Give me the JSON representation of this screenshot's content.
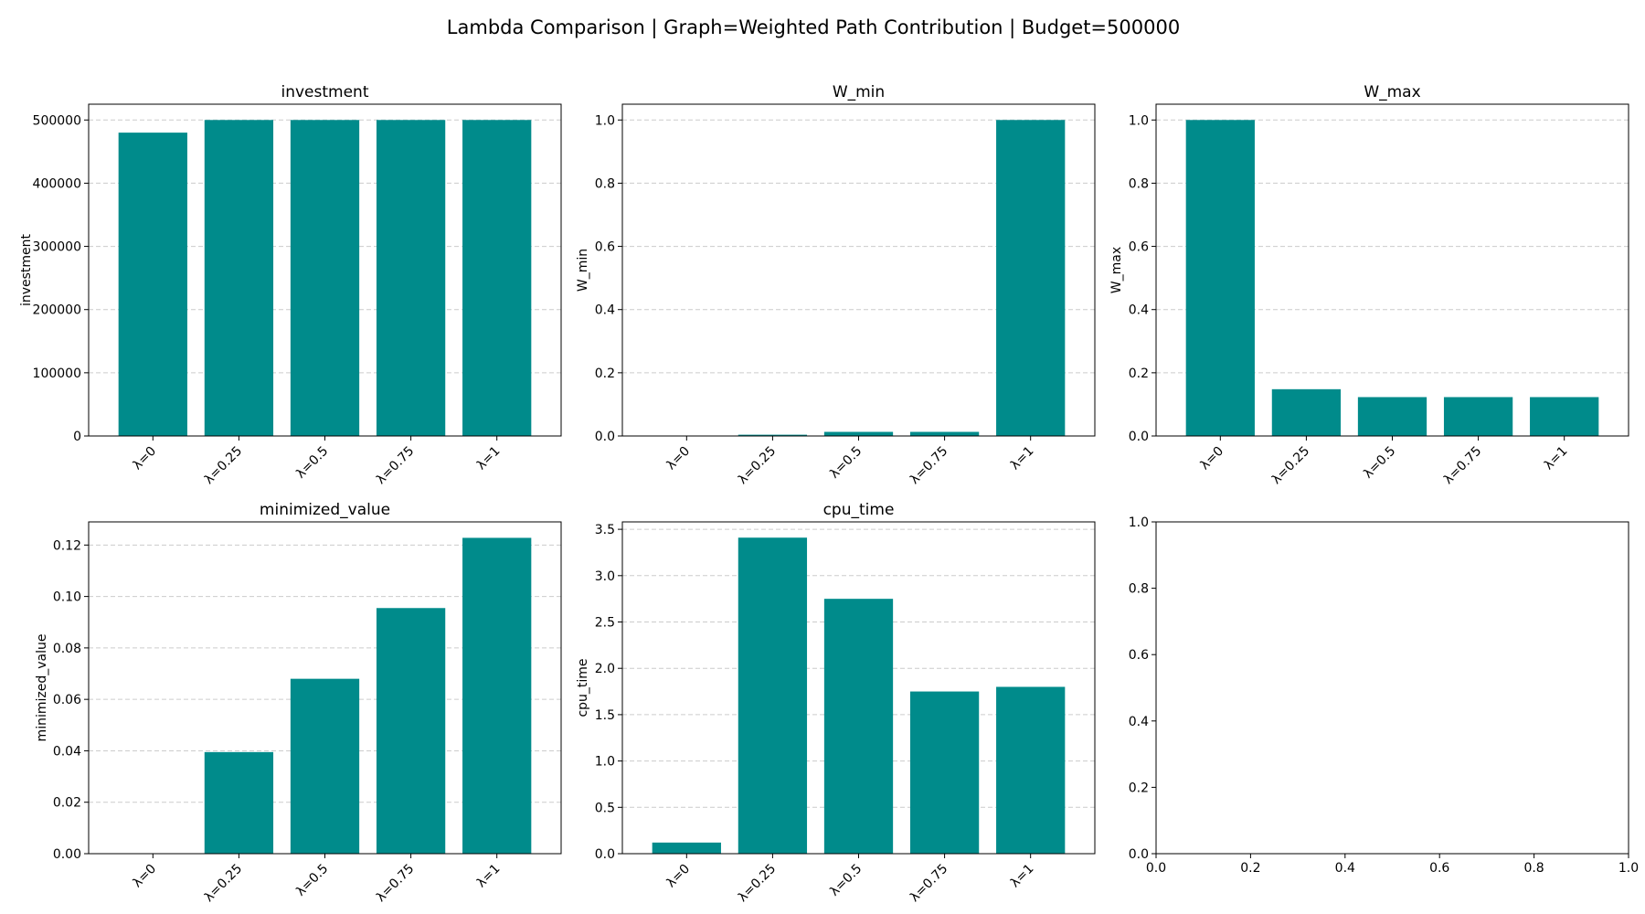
{
  "figure": {
    "title": "Lambda Comparison | Graph=Weighted Path Contribution | Budget=500000",
    "bar_color": "#008B8B",
    "grid_color": "#cccccc"
  },
  "chart_data": [
    {
      "type": "bar",
      "title": "investment",
      "ylabel": "investment",
      "categories": [
        "λ=0",
        "λ=0.25",
        "λ=0.5",
        "λ=0.75",
        "λ=1"
      ],
      "values": [
        480000,
        500000,
        500000,
        500000,
        500000
      ],
      "ylim": [
        0,
        525000
      ],
      "yticks": [
        0,
        100000,
        200000,
        300000,
        400000,
        500000
      ],
      "ytick_labels": [
        "0",
        "100000",
        "200000",
        "300000",
        "400000",
        "500000"
      ],
      "grid": true,
      "grid_axis": "y"
    },
    {
      "type": "bar",
      "title": "W_min",
      "ylabel": "W_min",
      "categories": [
        "λ=0",
        "λ=0.25",
        "λ=0.5",
        "λ=0.75",
        "λ=1"
      ],
      "values": [
        0.0,
        0.004,
        0.013,
        0.013,
        1.0
      ],
      "ylim": [
        0,
        1.05
      ],
      "yticks": [
        0,
        0.2,
        0.4,
        0.6,
        0.8,
        1.0
      ],
      "ytick_labels": [
        "0.0",
        "0.2",
        "0.4",
        "0.6",
        "0.8",
        "1.0"
      ],
      "grid": true,
      "grid_axis": "y"
    },
    {
      "type": "bar",
      "title": "W_max",
      "ylabel": "W_max",
      "categories": [
        "λ=0",
        "λ=0.25",
        "λ=0.5",
        "λ=0.75",
        "λ=1"
      ],
      "values": [
        1.0,
        0.148,
        0.123,
        0.123,
        0.123
      ],
      "ylim": [
        0,
        1.05
      ],
      "yticks": [
        0,
        0.2,
        0.4,
        0.6,
        0.8,
        1.0
      ],
      "ytick_labels": [
        "0.0",
        "0.2",
        "0.4",
        "0.6",
        "0.8",
        "1.0"
      ],
      "grid": true,
      "grid_axis": "y"
    },
    {
      "type": "bar",
      "title": "minimized_value",
      "ylabel": "minimized_value",
      "categories": [
        "λ=0",
        "λ=0.25",
        "λ=0.5",
        "λ=0.75",
        "λ=1"
      ],
      "values": [
        0.0,
        0.0395,
        0.068,
        0.0955,
        0.1228
      ],
      "ylim": [
        0,
        0.129
      ],
      "yticks": [
        0,
        0.02,
        0.04,
        0.06,
        0.08,
        0.1,
        0.12
      ],
      "ytick_labels": [
        "0.00",
        "0.02",
        "0.04",
        "0.06",
        "0.08",
        "0.10",
        "0.12"
      ],
      "grid": true,
      "grid_axis": "y"
    },
    {
      "type": "bar",
      "title": "cpu_time",
      "ylabel": "cpu_time",
      "categories": [
        "λ=0",
        "λ=0.25",
        "λ=0.5",
        "λ=0.75",
        "λ=1"
      ],
      "values": [
        0.12,
        3.41,
        2.75,
        1.75,
        1.8
      ],
      "ylim": [
        0,
        3.58
      ],
      "yticks": [
        0,
        0.5,
        1.0,
        1.5,
        2.0,
        2.5,
        3.0,
        3.5
      ],
      "ytick_labels": [
        "0.0",
        "0.5",
        "1.0",
        "1.5",
        "2.0",
        "2.5",
        "3.0",
        "3.5"
      ],
      "grid": true,
      "grid_axis": "y"
    },
    {
      "type": "empty",
      "title": "",
      "ylabel": "",
      "xlim": [
        0,
        1
      ],
      "ylim": [
        0,
        1
      ],
      "xticks": [
        0,
        0.2,
        0.4,
        0.6,
        0.8,
        1.0
      ],
      "xtick_labels": [
        "0.0",
        "0.2",
        "0.4",
        "0.6",
        "0.8",
        "1.0"
      ],
      "yticks": [
        0,
        0.2,
        0.4,
        0.6,
        0.8,
        1.0
      ],
      "ytick_labels": [
        "0.0",
        "0.2",
        "0.4",
        "0.6",
        "0.8",
        "1.0"
      ],
      "grid": false
    }
  ]
}
